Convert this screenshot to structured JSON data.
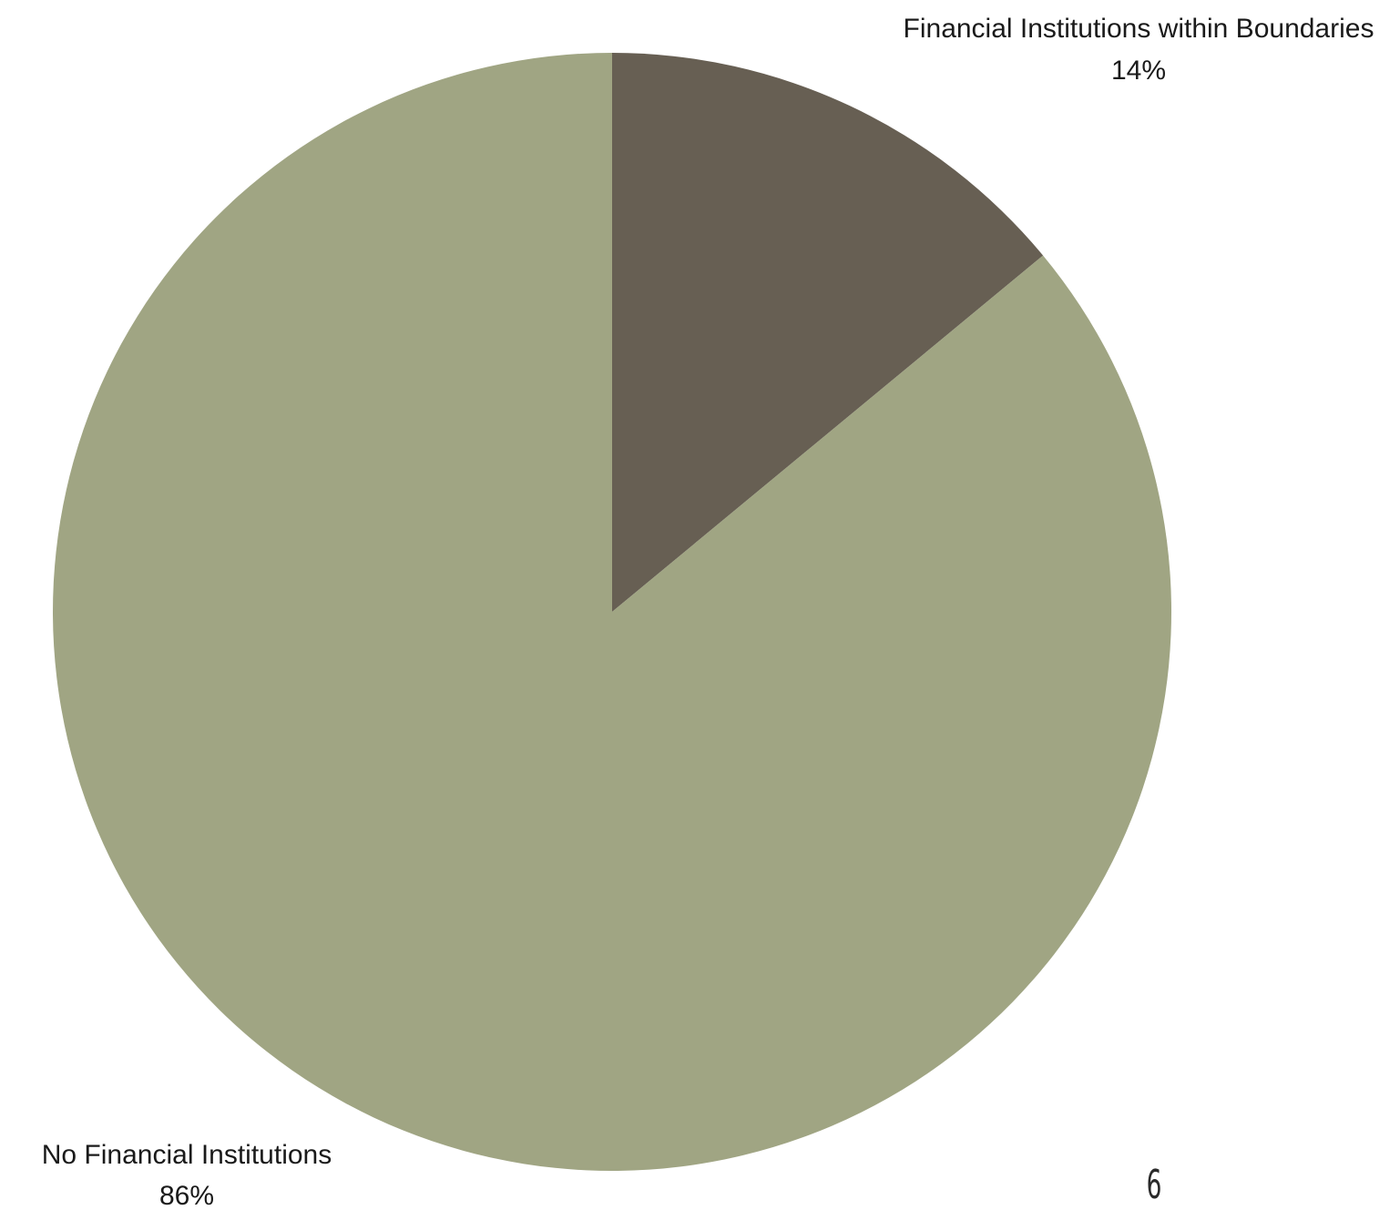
{
  "chart_data": {
    "type": "pie",
    "title": "",
    "start_angle": "12 o'clock, clockwise",
    "slices": [
      {
        "name": "Financial Institutions within Boundaries",
        "value": 14,
        "label": "14%",
        "color": "#675f53"
      },
      {
        "name": "No Financial Institutions",
        "value": 86,
        "label": "86%",
        "color": "#a0a583"
      }
    ]
  },
  "page_number": "6"
}
